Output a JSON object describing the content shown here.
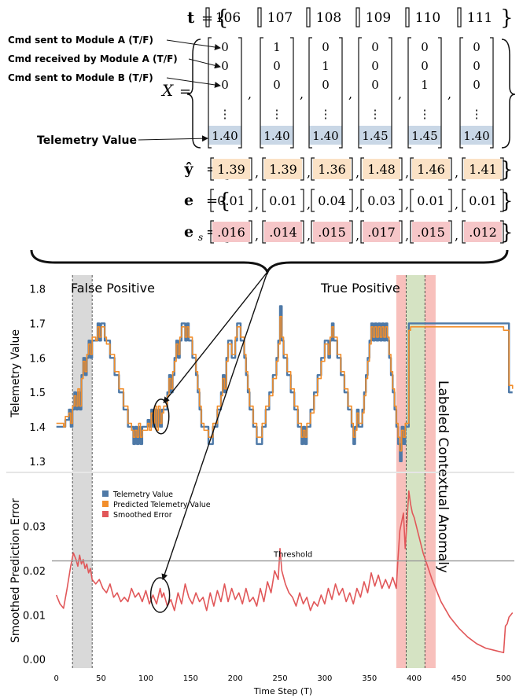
{
  "equations": {
    "t_label": "t",
    "t_values": [
      "106",
      "107",
      "108",
      "109",
      "110",
      "111"
    ],
    "x_label": "X",
    "row_labels": [
      "Cmd sent to Module A (T/F)",
      "Cmd received by Module A (T/F)",
      "Cmd sent to Module B (T/F)",
      "Telemetry Value"
    ],
    "x_columns": [
      [
        "0",
        "0",
        "0",
        "1.40"
      ],
      [
        "1",
        "0",
        "0",
        "1.40"
      ],
      [
        "0",
        "1",
        "0",
        "1.40"
      ],
      [
        "0",
        "0",
        "0",
        "1.45"
      ],
      [
        "0",
        "0",
        "1",
        "1.45"
      ],
      [
        "0",
        "0",
        "0",
        "1.40"
      ]
    ],
    "ellipsis": "⋮",
    "yhat_label": "ŷ",
    "yhat_values": [
      "1.39",
      "1.39",
      "1.36",
      "1.48",
      "1.46",
      "1.41"
    ],
    "e_label": "e",
    "e_values": [
      "0.01",
      "0.01",
      "0.04",
      "0.03",
      "0.01",
      "0.01"
    ],
    "es_label": "e",
    "es_sub": "s",
    "es_values": [
      ".016",
      ".014",
      ".015",
      ".017",
      ".015",
      ".012"
    ],
    "equals": "=",
    "lbrace": "{",
    "rbrace": "}",
    "comma": ","
  },
  "colors": {
    "telemetry": "#4e79a7",
    "predicted": "#f28e2b",
    "error": "#e15759",
    "x_cell_bg": "#c9d7e6",
    "yhat_cell_bg": "#fbe2c6",
    "es_cell_bg": "#f6c6c8",
    "false_pos_band": "#d9d9d9",
    "true_pos_band": "#f7b5b0",
    "anomaly_band": "#d5e3c3",
    "threshold": "#999999"
  },
  "chart_data": [
    {
      "type": "line",
      "title": "",
      "xlabel": "",
      "ylabel": "Telemetry Value",
      "xlim": [
        -5,
        512
      ],
      "ylim": [
        1.27,
        1.84
      ],
      "yticks": [
        "1.3",
        "1.4",
        "1.5",
        "1.6",
        "1.7",
        "1.8"
      ],
      "ytick_values": [
        1.3,
        1.4,
        1.5,
        1.6,
        1.7,
        1.8
      ],
      "series": [
        {
          "name": "Telemetry Value",
          "color": "#4e79a7",
          "x": [
            0,
            8,
            10,
            14,
            16,
            18,
            20,
            22,
            24,
            26,
            28,
            30,
            32,
            34,
            36,
            38,
            40,
            44,
            46,
            48,
            50,
            52,
            54,
            56,
            60,
            65,
            70,
            75,
            80,
            84,
            86,
            88,
            90,
            92,
            94,
            96,
            98,
            100,
            102,
            104,
            106,
            108,
            110,
            112,
            114,
            116,
            118,
            120,
            124,
            126,
            128,
            130,
            132,
            134,
            136,
            138,
            140,
            142,
            144,
            146,
            148,
            152,
            156,
            158,
            160,
            162,
            165,
            170,
            175,
            180,
            184,
            186,
            188,
            190,
            192,
            196,
            200,
            202,
            206,
            210,
            212,
            214,
            216,
            220,
            224,
            230,
            234,
            238,
            242,
            246,
            248,
            250,
            252,
            254,
            258,
            262,
            266,
            270,
            274,
            276,
            278,
            280,
            284,
            288,
            292,
            296,
            300,
            304,
            306,
            308,
            310,
            314,
            318,
            322,
            326,
            330,
            332,
            334,
            336,
            338,
            340,
            342,
            344,
            346,
            348,
            350,
            352,
            354,
            356,
            358,
            360,
            362,
            364,
            366,
            368,
            370,
            372,
            374,
            376,
            378,
            380,
            382,
            384,
            386,
            388,
            390,
            392,
            394,
            396,
            398,
            400,
            450,
            500,
            506,
            510
          ],
          "y": [
            1.4,
            1.4,
            1.42,
            1.45,
            1.4,
            1.45,
            1.5,
            1.45,
            1.5,
            1.45,
            1.55,
            1.6,
            1.55,
            1.6,
            1.65,
            1.6,
            1.65,
            1.65,
            1.7,
            1.65,
            1.7,
            1.7,
            1.65,
            1.65,
            1.6,
            1.55,
            1.5,
            1.45,
            1.4,
            1.4,
            1.35,
            1.4,
            1.35,
            1.4,
            1.35,
            1.4,
            1.4,
            1.4,
            1.42,
            1.4,
            1.45,
            1.4,
            1.45,
            1.4,
            1.45,
            1.4,
            1.45,
            1.45,
            1.5,
            1.55,
            1.5,
            1.55,
            1.6,
            1.65,
            1.6,
            1.65,
            1.7,
            1.7,
            1.65,
            1.7,
            1.65,
            1.6,
            1.55,
            1.5,
            1.45,
            1.4,
            1.4,
            1.35,
            1.4,
            1.45,
            1.5,
            1.55,
            1.5,
            1.6,
            1.65,
            1.6,
            1.65,
            1.7,
            1.65,
            1.6,
            1.55,
            1.5,
            1.45,
            1.4,
            1.35,
            1.4,
            1.45,
            1.5,
            1.55,
            1.6,
            1.65,
            1.75,
            1.65,
            1.6,
            1.55,
            1.5,
            1.45,
            1.4,
            1.35,
            1.4,
            1.35,
            1.4,
            1.45,
            1.5,
            1.55,
            1.6,
            1.65,
            1.6,
            1.65,
            1.7,
            1.65,
            1.6,
            1.55,
            1.5,
            1.45,
            1.4,
            1.35,
            1.4,
            1.45,
            1.4,
            1.4,
            1.45,
            1.5,
            1.55,
            1.6,
            1.65,
            1.7,
            1.65,
            1.7,
            1.65,
            1.7,
            1.65,
            1.7,
            1.65,
            1.7,
            1.65,
            1.6,
            1.55,
            1.5,
            1.45,
            1.4,
            1.35,
            1.3,
            1.4,
            1.35,
            1.4,
            1.4,
            1.7,
            1.7,
            1.7,
            1.7,
            1.7,
            1.7,
            1.5,
            1.5
          ]
        },
        {
          "name": "Predicted Telemetry Value",
          "color": "#f28e2b",
          "x": [
            0,
            8,
            10,
            14,
            16,
            18,
            20,
            22,
            24,
            26,
            28,
            30,
            32,
            34,
            36,
            38,
            40,
            44,
            46,
            48,
            50,
            52,
            54,
            56,
            60,
            65,
            70,
            75,
            80,
            84,
            86,
            88,
            90,
            92,
            94,
            96,
            98,
            100,
            102,
            104,
            106,
            108,
            110,
            112,
            114,
            116,
            118,
            120,
            124,
            126,
            128,
            130,
            132,
            134,
            136,
            138,
            140,
            142,
            144,
            146,
            148,
            152,
            156,
            158,
            160,
            162,
            165,
            170,
            175,
            180,
            184,
            186,
            188,
            190,
            192,
            196,
            200,
            202,
            206,
            210,
            212,
            214,
            216,
            220,
            224,
            230,
            234,
            238,
            242,
            246,
            248,
            250,
            252,
            254,
            258,
            262,
            266,
            270,
            274,
            276,
            278,
            280,
            284,
            288,
            292,
            296,
            300,
            304,
            306,
            308,
            310,
            314,
            318,
            322,
            326,
            330,
            332,
            334,
            336,
            338,
            340,
            342,
            344,
            346,
            348,
            350,
            352,
            354,
            356,
            358,
            360,
            362,
            364,
            366,
            368,
            370,
            372,
            374,
            376,
            378,
            380,
            382,
            384,
            386,
            388,
            390,
            392,
            394,
            396,
            398,
            400,
            450,
            500,
            506,
            510
          ],
          "y": [
            1.41,
            1.4,
            1.43,
            1.44,
            1.41,
            1.46,
            1.49,
            1.46,
            1.51,
            1.46,
            1.54,
            1.59,
            1.56,
            1.61,
            1.64,
            1.61,
            1.66,
            1.65,
            1.69,
            1.66,
            1.69,
            1.69,
            1.66,
            1.64,
            1.61,
            1.56,
            1.51,
            1.46,
            1.41,
            1.39,
            1.37,
            1.39,
            1.37,
            1.41,
            1.37,
            1.39,
            1.39,
            1.39,
            1.41,
            1.39,
            1.44,
            1.41,
            1.46,
            1.39,
            1.46,
            1.41,
            1.44,
            1.46,
            1.49,
            1.54,
            1.51,
            1.56,
            1.59,
            1.64,
            1.61,
            1.66,
            1.69,
            1.69,
            1.66,
            1.69,
            1.66,
            1.61,
            1.56,
            1.51,
            1.46,
            1.41,
            1.39,
            1.37,
            1.41,
            1.46,
            1.49,
            1.54,
            1.51,
            1.59,
            1.64,
            1.61,
            1.66,
            1.69,
            1.66,
            1.61,
            1.56,
            1.51,
            1.46,
            1.41,
            1.37,
            1.41,
            1.46,
            1.49,
            1.54,
            1.59,
            1.64,
            1.72,
            1.66,
            1.61,
            1.56,
            1.51,
            1.46,
            1.41,
            1.37,
            1.39,
            1.37,
            1.41,
            1.44,
            1.49,
            1.54,
            1.59,
            1.64,
            1.61,
            1.66,
            1.69,
            1.66,
            1.61,
            1.56,
            1.51,
            1.46,
            1.41,
            1.37,
            1.39,
            1.44,
            1.41,
            1.41,
            1.44,
            1.49,
            1.54,
            1.59,
            1.64,
            1.69,
            1.66,
            1.69,
            1.66,
            1.69,
            1.66,
            1.69,
            1.66,
            1.69,
            1.66,
            1.61,
            1.56,
            1.51,
            1.46,
            1.41,
            1.37,
            1.33,
            1.39,
            1.37,
            1.41,
            1.41,
            1.68,
            1.69,
            1.69,
            1.69,
            1.69,
            1.68,
            1.52,
            1.51
          ]
        }
      ],
      "annotations": [
        "False Positive",
        "True Positive",
        "Labeled Contextual Anomaly"
      ],
      "regions": [
        {
          "label": "False Positive",
          "x": [
            18,
            40
          ],
          "kind": "false_pos"
        },
        {
          "label": "True Positive",
          "x": [
            380,
            424
          ],
          "kind": "true_pos"
        },
        {
          "label": "Labeled Contextual Anomaly",
          "x": [
            391,
            412
          ],
          "kind": "anomaly"
        }
      ]
    },
    {
      "type": "line",
      "title": "",
      "xlabel": "Time Step (T)",
      "ylabel": "Smoothed Prediction Error",
      "xlim": [
        -5,
        512
      ],
      "ylim": [
        -0.002,
        0.042
      ],
      "xticks": [
        "0",
        "50",
        "100",
        "150",
        "200",
        "250",
        "300",
        "350",
        "400",
        "450",
        "500"
      ],
      "xtick_values": [
        0,
        50,
        100,
        150,
        200,
        250,
        300,
        350,
        400,
        450,
        500
      ],
      "yticks": [
        "0.00",
        "0.01",
        "0.02",
        "0.03"
      ],
      "ytick_values": [
        0,
        0.01,
        0.02,
        0.03
      ],
      "threshold": 0.0222,
      "threshold_label": "Threshold",
      "legend": [
        "Telemetry Value",
        "Predicted Telemetry Value",
        "Smoothed Error"
      ],
      "legend_position": "upper-left",
      "series": [
        {
          "name": "Smoothed Error",
          "color": "#e15759",
          "x": [
            0,
            4,
            8,
            12,
            16,
            19,
            22,
            24,
            26,
            28,
            30,
            32,
            34,
            36,
            38,
            40,
            44,
            48,
            52,
            56,
            60,
            64,
            68,
            72,
            76,
            80,
            84,
            88,
            92,
            96,
            100,
            104,
            108,
            112,
            116,
            118,
            120,
            124,
            128,
            132,
            136,
            140,
            144,
            148,
            152,
            156,
            160,
            164,
            168,
            172,
            176,
            180,
            184,
            188,
            192,
            196,
            200,
            204,
            208,
            212,
            216,
            220,
            224,
            228,
            232,
            236,
            240,
            244,
            248,
            250,
            252,
            256,
            260,
            264,
            268,
            272,
            276,
            280,
            284,
            288,
            292,
            296,
            300,
            304,
            308,
            312,
            316,
            320,
            324,
            328,
            332,
            336,
            340,
            344,
            348,
            352,
            356,
            360,
            364,
            368,
            372,
            376,
            380,
            382,
            384,
            386,
            388,
            390,
            392,
            394,
            396,
            398,
            400,
            405,
            410,
            420,
            430,
            440,
            450,
            460,
            470,
            480,
            490,
            500,
            502,
            504,
            506,
            508,
            510
          ],
          "y": [
            0.0145,
            0.0125,
            0.0115,
            0.016,
            0.021,
            0.024,
            0.0225,
            0.021,
            0.0235,
            0.0215,
            0.0225,
            0.0205,
            0.0215,
            0.0195,
            0.0205,
            0.018,
            0.017,
            0.018,
            0.016,
            0.015,
            0.017,
            0.014,
            0.015,
            0.013,
            0.014,
            0.013,
            0.016,
            0.014,
            0.015,
            0.013,
            0.0155,
            0.0125,
            0.0145,
            0.0125,
            0.016,
            0.014,
            0.015,
            0.012,
            0.0135,
            0.011,
            0.015,
            0.0125,
            0.017,
            0.014,
            0.0125,
            0.015,
            0.013,
            0.014,
            0.011,
            0.015,
            0.012,
            0.0155,
            0.013,
            0.017,
            0.013,
            0.016,
            0.0135,
            0.015,
            0.0125,
            0.016,
            0.013,
            0.014,
            0.012,
            0.016,
            0.013,
            0.0175,
            0.015,
            0.02,
            0.018,
            0.025,
            0.02,
            0.017,
            0.015,
            0.014,
            0.012,
            0.015,
            0.0125,
            0.014,
            0.011,
            0.013,
            0.012,
            0.0145,
            0.0125,
            0.016,
            0.0135,
            0.017,
            0.0145,
            0.016,
            0.013,
            0.015,
            0.0125,
            0.016,
            0.014,
            0.0175,
            0.015,
            0.0195,
            0.0165,
            0.019,
            0.016,
            0.018,
            0.016,
            0.0185,
            0.016,
            0.023,
            0.029,
            0.031,
            0.033,
            0.025,
            0.031,
            0.038,
            0.035,
            0.033,
            0.032,
            0.028,
            0.024,
            0.018,
            0.013,
            0.0095,
            0.007,
            0.005,
            0.0035,
            0.0025,
            0.002,
            0.0015,
            0.0075,
            0.008,
            0.0095,
            0.01,
            0.0105
          ]
        }
      ],
      "regions": [
        {
          "x": [
            18,
            40
          ],
          "kind": "false_pos"
        },
        {
          "x": [
            380,
            424
          ],
          "kind": "true_pos"
        },
        {
          "x": [
            391,
            412
          ],
          "kind": "anomaly"
        }
      ]
    }
  ]
}
